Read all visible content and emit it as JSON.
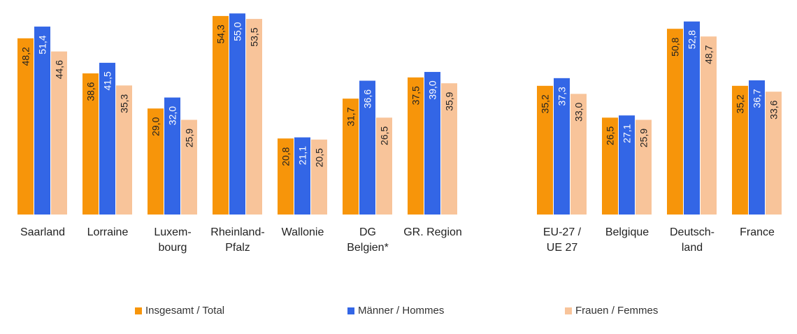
{
  "chart_data": {
    "type": "bar",
    "title": "",
    "xlabel": "",
    "ylabel": "",
    "ylim": [
      0,
      56
    ],
    "grid": false,
    "legend_position": "bottom",
    "groups": [
      {
        "categories": [
          [
            "Saarland"
          ],
          [
            "Lorraine"
          ],
          [
            "Luxem-",
            "bourg"
          ],
          [
            "Rheinland-",
            "Pfalz"
          ],
          [
            "Wallonie"
          ],
          [
            "DG",
            "Belgien*"
          ],
          [
            "GR. Region"
          ]
        ]
      },
      {
        "categories": [
          [
            "EU-27 /",
            "UE 27"
          ],
          [
            "Belgique"
          ],
          [
            "Deutsch-",
            "land"
          ],
          [
            "France"
          ]
        ]
      }
    ],
    "series": [
      {
        "name": "Insgesamt / Total",
        "color": "#F7950A",
        "label_color": "#222222",
        "values": [
          48.2,
          38.6,
          29.0,
          54.3,
          20.8,
          31.7,
          37.5,
          35.2,
          26.5,
          50.8,
          35.2
        ],
        "labels": [
          "48,2",
          "38,6",
          "29,0",
          "54,3",
          "20,8",
          "31,7",
          "37,5",
          "35,2",
          "26,5",
          "50,8",
          "35,2"
        ]
      },
      {
        "name": "Männer / Hommes",
        "color": "#3366E6",
        "label_color": "#ffffff",
        "values": [
          51.4,
          41.5,
          32.0,
          55.0,
          21.1,
          36.6,
          39.0,
          37.3,
          27.1,
          52.8,
          36.7
        ],
        "labels": [
          "51,4",
          "41,5",
          "32,0",
          "55,0",
          "21,1",
          "36,6",
          "39,0",
          "37,3",
          "27,1",
          "52,8",
          "36,7"
        ]
      },
      {
        "name": "Frauen / Femmes",
        "color": "#F8C49A",
        "label_color": "#222222",
        "values": [
          44.6,
          35.3,
          25.9,
          53.5,
          20.5,
          26.5,
          35.9,
          33.0,
          25.9,
          48.7,
          33.6
        ],
        "labels": [
          "44,6",
          "35,3",
          "25,9",
          "53,5",
          "20,5",
          "26,5",
          "35,9",
          "33,0",
          "25,9",
          "48,7",
          "33,6"
        ]
      }
    ]
  }
}
